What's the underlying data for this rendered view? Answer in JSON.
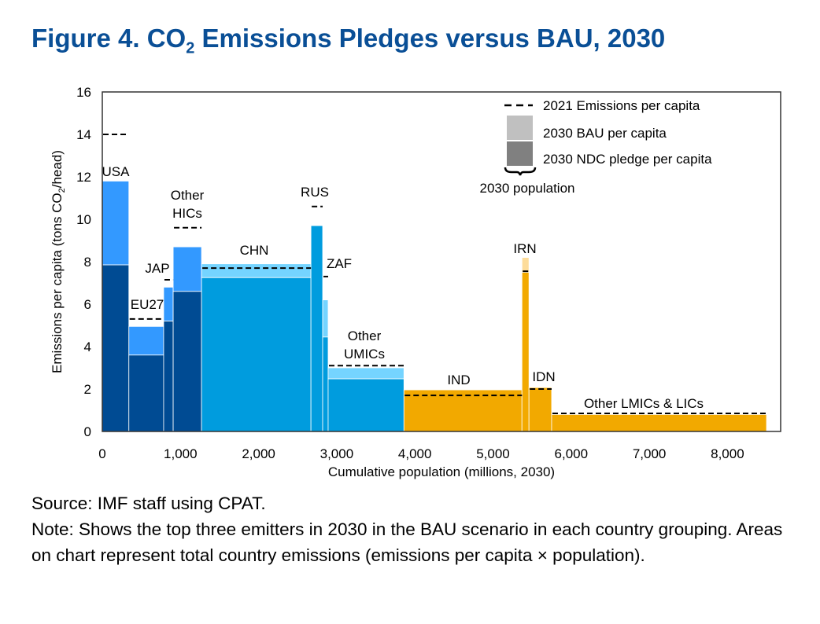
{
  "title": {
    "prefix": "Figure 4. CO",
    "sub": "2",
    "suffix": " Emissions Pledges versus BAU, 2030"
  },
  "source": "Source: IMF staff using CPAT.",
  "note": "Note: Shows the top three emitters in 2030 in the BAU scenario in each country grouping. Areas on chart represent total country emissions (emissions per capita × population).",
  "colors": {
    "HIC": {
      "ndc": "#004b93",
      "bau": "#3399ff"
    },
    "UMIC": {
      "ndc": "#009cde",
      "bau": "#75d4ff"
    },
    "LMIC": {
      "ndc": "#f2a900",
      "bau": "#fddc9a"
    },
    "legend_bau": "#c0c0c0",
    "legend_ndc": "#808080"
  },
  "chart_data": {
    "type": "variable-width bar (marimekko)",
    "title": "Figure 4. CO2 Emissions Pledges versus BAU, 2030",
    "xlabel": "Cumulative population (millions, 2030)",
    "ylabel": "Emissions per capita (tons CO2/head)",
    "xlim": [
      0,
      8700
    ],
    "ylim": [
      0,
      16
    ],
    "xticks": [
      "0",
      "1,000",
      "2,000",
      "3,000",
      "4,000",
      "5,000",
      "6,000",
      "7,000",
      "8,000"
    ],
    "yticks": [
      "0",
      "2",
      "4",
      "6",
      "8",
      "10",
      "12",
      "14",
      "16"
    ],
    "legend": {
      "dash": "2021 Emissions per capita",
      "bau": "2030 BAU per capita",
      "ndc": "2030 NDC pledge per capita",
      "width": "2030 population"
    },
    "bars": [
      {
        "label": [
          "USA"
        ],
        "group": "HIC",
        "x0": 0,
        "x1": 340,
        "ndc": 7.85,
        "bau": 11.8,
        "e2021": 14.0
      },
      {
        "label": [
          "EU27"
        ],
        "group": "HIC",
        "x0": 340,
        "x1": 785,
        "ndc": 3.6,
        "bau": 4.95,
        "e2021": 5.3
      },
      {
        "label": [
          "JAP"
        ],
        "group": "HIC",
        "x0": 785,
        "x1": 907,
        "ndc": 5.2,
        "bau": 6.8,
        "e2021": 7.15
      },
      {
        "label": [
          "Other",
          "HICs"
        ],
        "group": "HIC",
        "x0": 907,
        "x1": 1270,
        "ndc": 6.6,
        "bau": 8.7,
        "e2021": 9.6
      },
      {
        "label": [
          "CHN"
        ],
        "group": "UMIC",
        "x0": 1270,
        "x1": 2670,
        "ndc": 7.25,
        "bau": 7.9,
        "e2021": 7.7
      },
      {
        "label": [
          "RUS"
        ],
        "group": "UMIC",
        "x0": 2670,
        "x1": 2820,
        "ndc": 9.7,
        "bau": 9.7,
        "e2021": 10.6
      },
      {
        "label": [
          "ZAF"
        ],
        "group": "UMIC",
        "x0": 2820,
        "x1": 2890,
        "ndc": 4.45,
        "bau": 6.2,
        "e2021": 7.3
      },
      {
        "label": [
          "Other",
          "UMICs"
        ],
        "group": "UMIC",
        "x0": 2890,
        "x1": 3860,
        "ndc": 2.48,
        "bau": 3.0,
        "e2021": 3.1
      },
      {
        "label": [
          "IND"
        ],
        "group": "LMIC",
        "x0": 3860,
        "x1": 5370,
        "ndc": 1.96,
        "bau": 1.96,
        "e2021": 1.7
      },
      {
        "label": [
          "IRN"
        ],
        "group": "LMIC",
        "x0": 5370,
        "x1": 5460,
        "ndc": 7.5,
        "bau": 8.2,
        "e2021": 7.55
      },
      {
        "label": [
          "IDN"
        ],
        "group": "LMIC",
        "x0": 5460,
        "x1": 5750,
        "ndc": 2.07,
        "bau": 2.07,
        "e2021": 2.0
      },
      {
        "label": [
          "Other LMICs & LICs"
        ],
        "group": "LMIC",
        "x0": 5750,
        "x1": 8500,
        "ndc": 0.8,
        "bau": 0.8,
        "e2021": 0.85
      }
    ]
  }
}
